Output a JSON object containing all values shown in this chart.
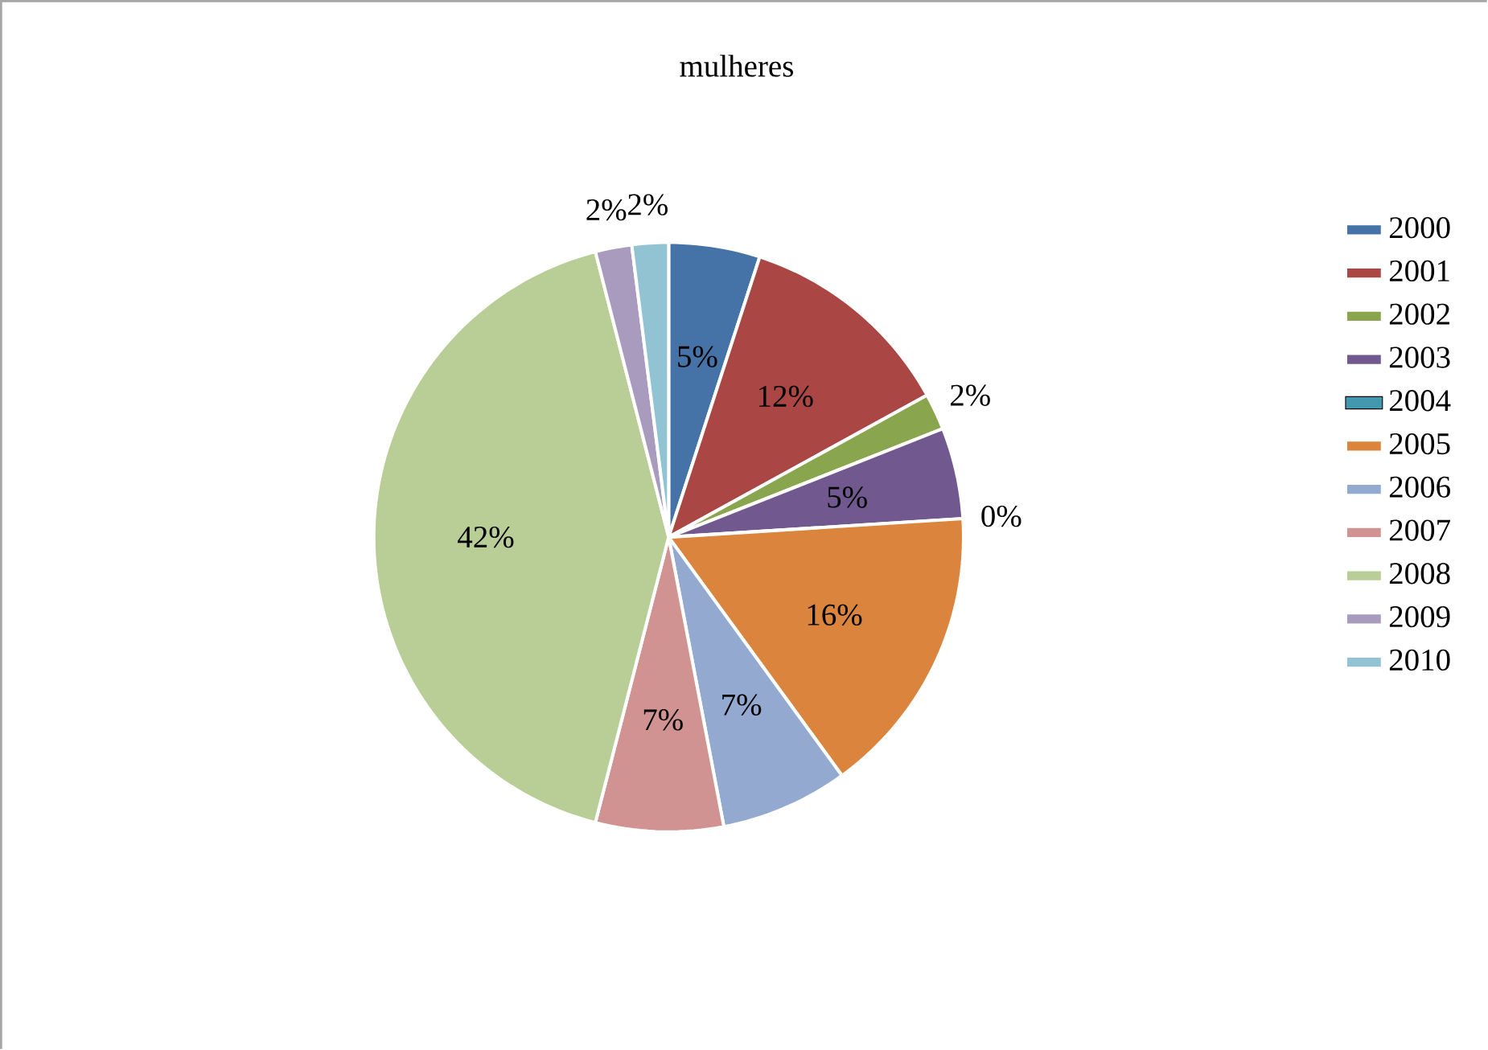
{
  "chart_data": {
    "type": "pie",
    "title": "mulheres",
    "categories": [
      "2000",
      "2001",
      "2002",
      "2003",
      "2004",
      "2005",
      "2006",
      "2007",
      "2008",
      "2009",
      "2010"
    ],
    "values": [
      5,
      12,
      2,
      5,
      0,
      16,
      7,
      7,
      42,
      2,
      2
    ],
    "value_labels": [
      "5%",
      "12%",
      "2%",
      "5%",
      "0%",
      "16%",
      "7%",
      "7%",
      "42%",
      "2%",
      "2%"
    ],
    "colors": [
      "#4572a7",
      "#aa4643",
      "#89a54e",
      "#71588f",
      "#4198af",
      "#db843d",
      "#93a9cf",
      "#d19392",
      "#b9cd96",
      "#a99bbd",
      "#92c3d3"
    ],
    "legend": "right"
  }
}
